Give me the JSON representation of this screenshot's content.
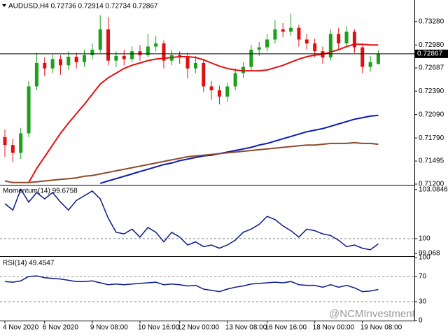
{
  "chart_data": [
    {
      "type": "candlestick",
      "title": "AUDUSD,H4  0.72736 0.72914 0.72734 0.72867",
      "up_color": "#1aa01a",
      "down_color": "#e01010",
      "open": [
        0.718,
        0.717,
        0.716,
        0.7185,
        0.7245,
        0.7275,
        0.7268,
        0.728,
        0.7272,
        0.7283,
        0.7276,
        0.7285,
        0.7292,
        0.7318,
        0.7278,
        0.7284,
        0.728,
        0.729,
        0.7285,
        0.7296,
        0.73,
        0.7278,
        0.7285,
        0.7282,
        0.7268,
        0.7275,
        0.7245,
        0.724,
        0.7232,
        0.7245,
        0.7262,
        0.727,
        0.7292,
        0.7295,
        0.7305,
        0.7318,
        0.7315,
        0.732,
        0.7305,
        0.73,
        0.729,
        0.7282,
        0.7312,
        0.73,
        0.7315,
        0.7295,
        0.727,
        0.72736
      ],
      "high": [
        0.719,
        0.7178,
        0.7192,
        0.7252,
        0.7288,
        0.7282,
        0.7286,
        0.7285,
        0.729,
        0.7288,
        0.7292,
        0.73,
        0.7336,
        0.7334,
        0.729,
        0.7292,
        0.7296,
        0.7298,
        0.7312,
        0.731,
        0.7304,
        0.7292,
        0.729,
        0.7288,
        0.7284,
        0.728,
        0.7252,
        0.7246,
        0.725,
        0.7268,
        0.7276,
        0.7298,
        0.7302,
        0.7312,
        0.733,
        0.7326,
        0.7338,
        0.7324,
        0.7312,
        0.7306,
        0.7296,
        0.7318,
        0.732,
        0.7322,
        0.7318,
        0.7298,
        0.7284,
        0.72914
      ],
      "low": [
        0.7155,
        0.7148,
        0.7152,
        0.718,
        0.724,
        0.7258,
        0.7262,
        0.726,
        0.7266,
        0.7268,
        0.727,
        0.728,
        0.7288,
        0.7272,
        0.727,
        0.7272,
        0.7276,
        0.7278,
        0.7282,
        0.729,
        0.7268,
        0.7272,
        0.7274,
        0.7255,
        0.7262,
        0.7238,
        0.7228,
        0.7222,
        0.7225,
        0.724,
        0.7256,
        0.7266,
        0.7284,
        0.729,
        0.73,
        0.7308,
        0.731,
        0.7296,
        0.7292,
        0.7282,
        0.7274,
        0.7278,
        0.7292,
        0.7296,
        0.7288,
        0.7262,
        0.7264,
        0.72734
      ],
      "close": [
        0.717,
        0.716,
        0.7185,
        0.7245,
        0.7275,
        0.7268,
        0.728,
        0.7272,
        0.7283,
        0.7276,
        0.7285,
        0.7292,
        0.7318,
        0.7278,
        0.7284,
        0.728,
        0.729,
        0.7285,
        0.7296,
        0.73,
        0.7278,
        0.7285,
        0.7282,
        0.7268,
        0.7275,
        0.7245,
        0.724,
        0.7232,
        0.7245,
        0.7262,
        0.727,
        0.7292,
        0.7295,
        0.7305,
        0.7318,
        0.7315,
        0.732,
        0.7305,
        0.73,
        0.729,
        0.7282,
        0.7312,
        0.73,
        0.7315,
        0.7295,
        0.727,
        0.7276,
        0.72867
      ],
      "lines": [
        {
          "color": "#e01010",
          "values": [
            null,
            null,
            null,
            0.7122,
            0.714,
            0.7155,
            0.717,
            0.7185,
            0.7198,
            0.721,
            0.7222,
            0.7235,
            0.7248,
            0.7256,
            0.7262,
            0.7268,
            0.7272,
            0.7275,
            0.7278,
            0.728,
            0.7281,
            0.7282,
            0.7283,
            0.7283,
            0.7282,
            0.7279,
            0.7275,
            0.7271,
            0.7268,
            0.7266,
            0.7265,
            0.7265,
            0.7265,
            0.7266,
            0.7269,
            0.7272,
            0.7276,
            0.728,
            0.7283,
            0.7285,
            0.7286,
            0.7289,
            0.7292,
            0.7296,
            0.7299,
            0.7299,
            0.7298,
            0.7298
          ]
        },
        {
          "color": "#0a1ab4",
          "values": [
            null,
            null,
            null,
            null,
            null,
            null,
            null,
            null,
            null,
            null,
            null,
            null,
            0.7121,
            0.7124,
            0.7127,
            0.713,
            0.7133,
            0.7136,
            0.7139,
            0.7142,
            0.7145,
            0.7147,
            0.715,
            0.7152,
            0.7154,
            0.7156,
            0.7157,
            0.7159,
            0.7161,
            0.7163,
            0.7165,
            0.7167,
            0.717,
            0.7172,
            0.7175,
            0.7178,
            0.7181,
            0.7184,
            0.7187,
            0.7189,
            0.7191,
            0.7194,
            0.7197,
            0.72,
            0.7203,
            0.7205,
            0.7207,
            0.7208
          ]
        },
        {
          "color": "#8b4a2b",
          "values": [
            0.7124,
            0.7122,
            0.7122,
            0.7122,
            0.7123,
            0.7124,
            0.7125,
            0.7126,
            0.7127,
            0.7128,
            0.713,
            0.7131,
            0.7133,
            0.7135,
            0.7137,
            0.7139,
            0.7141,
            0.7143,
            0.7145,
            0.7147,
            0.7149,
            0.7151,
            0.7153,
            0.7155,
            0.7156,
            0.7157,
            0.7158,
            0.7159,
            0.716,
            0.7161,
            0.7162,
            0.7163,
            0.7164,
            0.7165,
            0.7166,
            0.7167,
            0.7168,
            0.7169,
            0.717,
            0.717,
            0.7171,
            0.7172,
            0.7172,
            0.7172,
            0.7173,
            0.7172,
            0.7172,
            0.7171
          ]
        }
      ],
      "current_price": 0.72867,
      "ylim": [
        0.712,
        0.7352
      ],
      "yticks": [
        {
          "value": 0.7328,
          "label": "0.73280"
        },
        {
          "value": 0.7298,
          "label": "0.72980"
        },
        0.72687,
        {
          "value": 0.7239,
          "label": "0.72390"
        },
        {
          "value": 0.7209,
          "label": "0.72090"
        },
        {
          "value": 0.7179,
          "label": "0.71790"
        },
        0.71495,
        {
          "value": 0.712,
          "label": "0.71200"
        }
      ],
      "xticks": [
        {
          "value": 0,
          "label": "4 Nov 2020"
        },
        {
          "value": 5,
          "label": "6 Nov 2020"
        },
        {
          "value": 11,
          "label": "9 Nov 08:00"
        },
        {
          "value": 17,
          "label": "10 Nov 16:00"
        },
        {
          "value": 22,
          "label": "12 Nov 00:00"
        },
        {
          "value": 28,
          "label": "13 Nov 08:00"
        },
        {
          "value": 33,
          "label": "16 Nov 16:00"
        },
        {
          "value": 39,
          "label": "18 Nov 00:00"
        },
        {
          "value": 45,
          "label": "19 Nov 08:00"
        }
      ]
    },
    {
      "type": "line",
      "title": "Momentum(14) 99.6758",
      "color": "#0a1a8c",
      "values": [
        102.2,
        101.8,
        103.1,
        102.3,
        102.9,
        102.5,
        102.9,
        102.3,
        101.8,
        102.4,
        102.7,
        103.0,
        102.5,
        101.3,
        100.4,
        100.3,
        100.6,
        100.1,
        100.7,
        100.4,
        99.8,
        100.4,
        100.1,
        99.6,
        99.8,
        99.5,
        99.6,
        99.4,
        99.6,
        99.9,
        100.4,
        100.6,
        100.9,
        101.4,
        101.2,
        100.8,
        100.5,
        100.1,
        100.6,
        100.5,
        100.3,
        100.2,
        99.9,
        99.5,
        99.6,
        99.4,
        99.3,
        99.6758
      ],
      "ylim": [
        98.94,
        103.3
      ],
      "yticks": [
        103.0846,
        100,
        99.068
      ],
      "levels": [
        100
      ]
    },
    {
      "type": "line",
      "title": "RSI(14) 49.4547",
      "color": "#0a1a8c",
      "values": [
        62,
        61,
        63,
        70,
        71,
        68,
        67,
        66,
        64,
        62,
        62,
        63,
        60,
        57,
        58,
        57,
        58,
        59,
        60,
        61,
        57,
        58,
        57,
        55,
        56,
        50,
        48,
        46,
        50,
        53,
        55,
        58,
        59,
        60,
        61,
        60,
        62,
        57,
        56,
        56,
        53,
        57,
        53,
        56,
        52,
        46,
        47,
        49.4547
      ],
      "ylim": [
        0,
        100
      ],
      "yticks": [
        100,
        70,
        30,
        0
      ],
      "levels": [
        70,
        30
      ]
    }
  ],
  "watermark": "@NCMInvestment"
}
